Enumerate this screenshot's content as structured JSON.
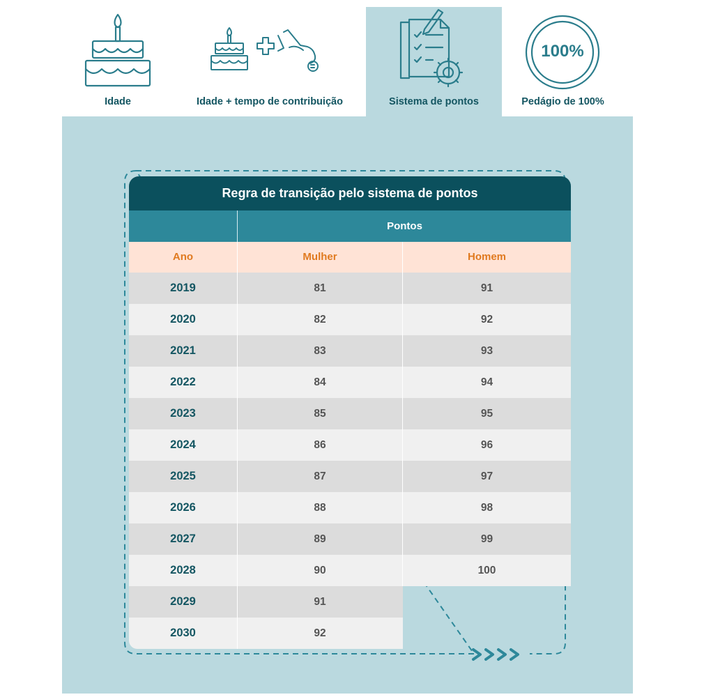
{
  "tabs": [
    {
      "label": "Idade",
      "icon": "cake-icon",
      "active": false
    },
    {
      "label": "Idade + tempo de contribuição",
      "icon": "cake-plus-coin-hand-icon",
      "active": false
    },
    {
      "label": "Sistema de pontos",
      "icon": "checklist-gear-icon",
      "active": true
    },
    {
      "label": "Pedágio de 100%",
      "icon": "percent-circle-icon",
      "active": false,
      "badge_text": "100%"
    }
  ],
  "table": {
    "title": "Regra de transição pelo sistema de pontos",
    "group_header": "Pontos",
    "columns": {
      "year": "Ano",
      "woman": "Mulher",
      "man": "Homem"
    },
    "rows": [
      {
        "year": "2019",
        "woman": "81",
        "man": "91"
      },
      {
        "year": "2020",
        "woman": "82",
        "man": "92"
      },
      {
        "year": "2021",
        "woman": "83",
        "man": "93"
      },
      {
        "year": "2022",
        "woman": "84",
        "man": "94"
      },
      {
        "year": "2023",
        "woman": "85",
        "man": "95"
      },
      {
        "year": "2024",
        "woman": "86",
        "man": "96"
      },
      {
        "year": "2025",
        "woman": "87",
        "man": "97"
      },
      {
        "year": "2026",
        "woman": "88",
        "man": "98"
      },
      {
        "year": "2027",
        "woman": "89",
        "man": "99"
      },
      {
        "year": "2028",
        "woman": "90",
        "man": "100"
      },
      {
        "year": "2029",
        "woman": "91",
        "man": ""
      },
      {
        "year": "2030",
        "woman": "92",
        "man": ""
      }
    ]
  },
  "colors": {
    "icon_teal": "#2b7d8c",
    "panel": "#bad9df",
    "title_bar": "#0b505d",
    "pontos_bar": "#2d889a",
    "header_bg": "#ffe3d6",
    "header_text": "#e07a20",
    "year_text": "#145662"
  }
}
